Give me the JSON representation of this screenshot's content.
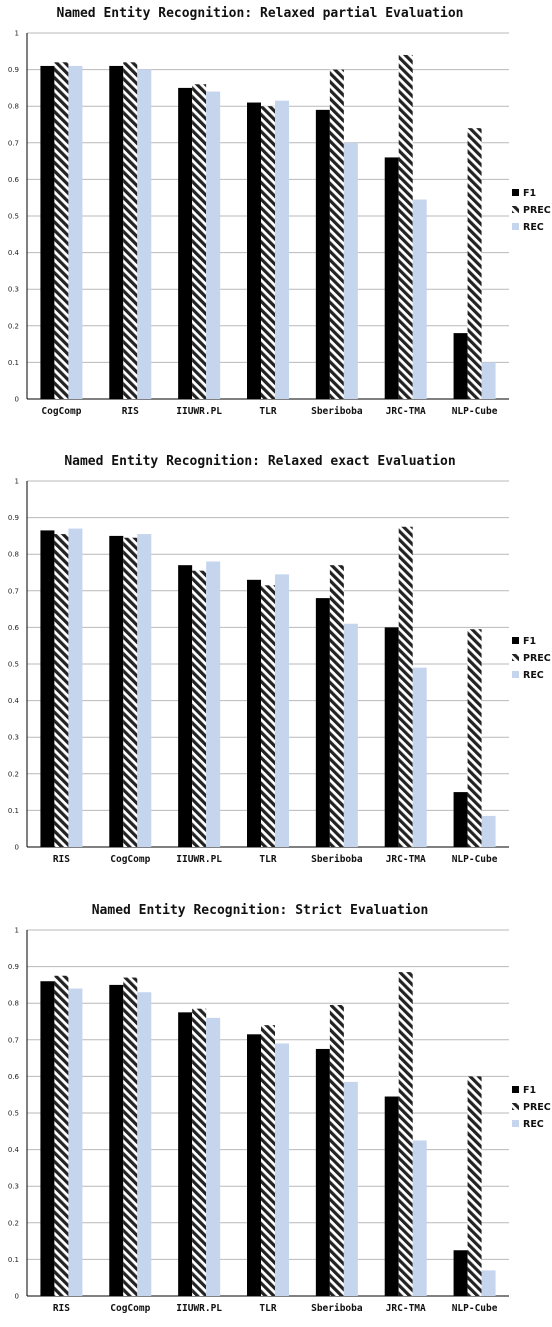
{
  "legend": {
    "f1_label": "F1",
    "prec_label": "PREC",
    "rec_label": "REC"
  },
  "colors": {
    "f1": "#000000",
    "prec": "#222222",
    "rec": "#c5d5ee",
    "grid": "#b9b9b9",
    "axis": "#000000"
  },
  "chart_data": [
    {
      "type": "bar",
      "title": "Named Entity Recognition: Relaxed partial Evaluation",
      "categories": [
        "CogComp",
        "RIS",
        "IIUWR.PL",
        "TLR",
        "Sberiboba",
        "JRC-TMA",
        "NLP-Cube"
      ],
      "series": [
        {
          "name": "F1",
          "values": [
            0.91,
            0.91,
            0.85,
            0.81,
            0.79,
            0.66,
            0.18
          ]
        },
        {
          "name": "PREC",
          "values": [
            0.92,
            0.92,
            0.86,
            0.8,
            0.9,
            0.94,
            0.74
          ]
        },
        {
          "name": "REC",
          "values": [
            0.91,
            0.9,
            0.84,
            0.815,
            0.7,
            0.545,
            0.1
          ]
        }
      ],
      "yticks": [
        "0",
        "0.1",
        "0.2",
        "0.3",
        "0.4",
        "0.5",
        "0.6",
        "0.7",
        "0.8",
        "0.9",
        "1"
      ],
      "ylim": [
        0,
        1
      ],
      "grid": true,
      "legend_position": "right"
    },
    {
      "type": "bar",
      "title": "Named Entity Recognition: Relaxed exact Evaluation",
      "categories": [
        "RIS",
        "CogComp",
        "IIUWR.PL",
        "TLR",
        "Sberiboba",
        "JRC-TMA",
        "NLP-Cube"
      ],
      "series": [
        {
          "name": "F1",
          "values": [
            0.865,
            0.85,
            0.77,
            0.73,
            0.68,
            0.6,
            0.15
          ]
        },
        {
          "name": "PREC",
          "values": [
            0.855,
            0.845,
            0.755,
            0.715,
            0.77,
            0.875,
            0.595
          ]
        },
        {
          "name": "REC",
          "values": [
            0.87,
            0.855,
            0.78,
            0.745,
            0.61,
            0.49,
            0.085
          ]
        }
      ],
      "yticks": [
        "0",
        "0.1",
        "0.2",
        "0.3",
        "0.4",
        "0.5",
        "0.6",
        "0.7",
        "0.8",
        "0.9",
        "1"
      ],
      "ylim": [
        0,
        1
      ],
      "grid": true,
      "legend_position": "right"
    },
    {
      "type": "bar",
      "title": "Named Entity Recognition: Strict Evaluation",
      "categories": [
        "RIS",
        "CogComp",
        "IIUWR.PL",
        "TLR",
        "Sberiboba",
        "JRC-TMA",
        "NLP-Cube"
      ],
      "series": [
        {
          "name": "F1",
          "values": [
            0.86,
            0.85,
            0.775,
            0.715,
            0.675,
            0.545,
            0.125
          ]
        },
        {
          "name": "PREC",
          "values": [
            0.875,
            0.87,
            0.785,
            0.74,
            0.795,
            0.885,
            0.6
          ]
        },
        {
          "name": "REC",
          "values": [
            0.84,
            0.83,
            0.76,
            0.69,
            0.585,
            0.425,
            0.07
          ]
        }
      ],
      "yticks": [
        "0",
        "0.1",
        "0.2",
        "0.3",
        "0.4",
        "0.5",
        "0.6",
        "0.7",
        "0.8",
        "0.9",
        "1"
      ],
      "ylim": [
        0,
        1
      ],
      "grid": true,
      "legend_position": "right"
    }
  ]
}
